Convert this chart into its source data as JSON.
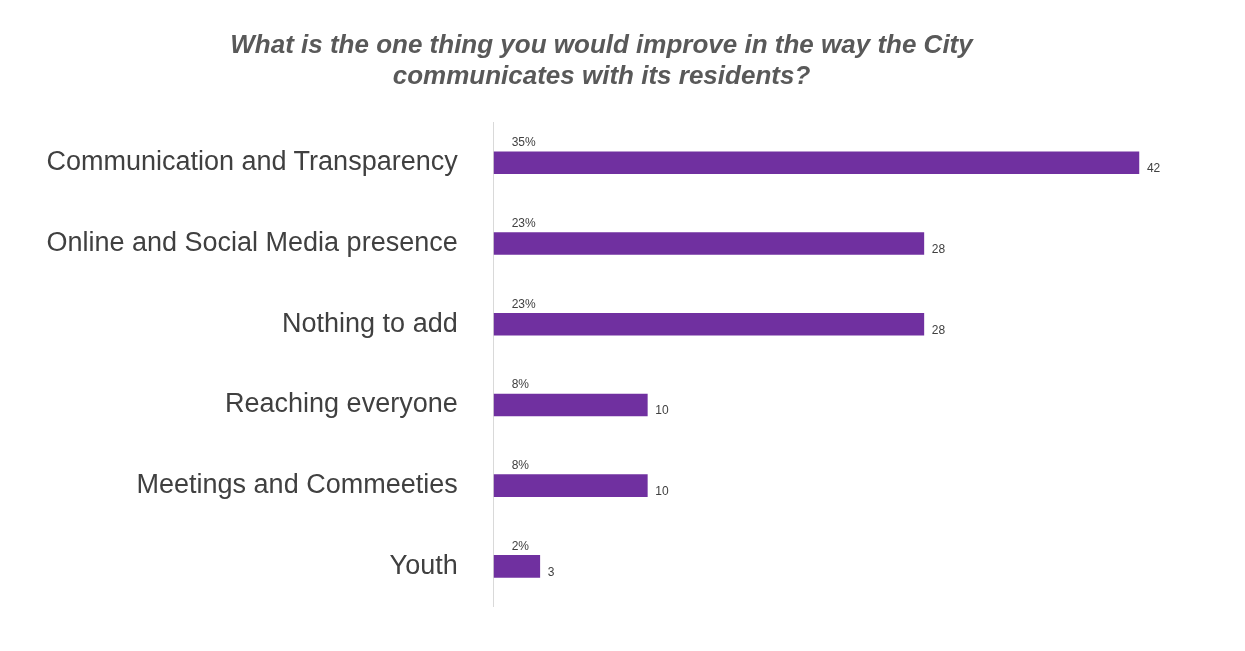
{
  "chart_data": {
    "type": "bar",
    "orientation": "horizontal",
    "title": "What is the one thing you would improve in the way the City communicates with its residents?",
    "categories": [
      "Communication and Transparency",
      "Online and Social Media presence",
      "Nothing to add",
      "Reaching everyone",
      "Meetings and Commeeties",
      "Youth"
    ],
    "values": [
      42,
      28,
      28,
      10,
      10,
      3
    ],
    "color": "#7030a0",
    "data_labels": true,
    "annotations": [
      "35%",
      "23%",
      "23%",
      "8%",
      "8%",
      "2%"
    ]
  }
}
